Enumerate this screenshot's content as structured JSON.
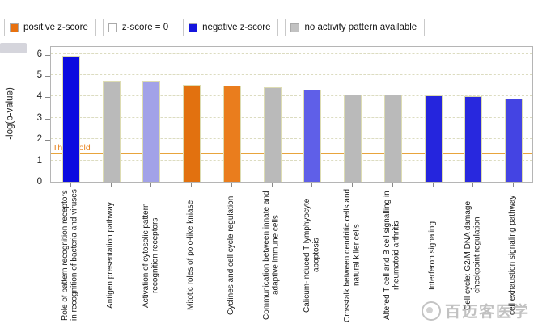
{
  "legend": {
    "items": [
      {
        "label": "positive z-score",
        "color": "#e8710f"
      },
      {
        "label": "z-score = 0",
        "color": "#ffffff"
      },
      {
        "label": "negative z-score",
        "color": "#1515dd"
      },
      {
        "label": "no activity pattern available",
        "color": "#c2c2c2"
      }
    ]
  },
  "chart_data": {
    "type": "bar",
    "title": "",
    "xlabel": "",
    "ylabel": "-log(p-value)",
    "ylim": [
      0,
      6.4
    ],
    "yticks": [
      0,
      1,
      2,
      3,
      4,
      5,
      6
    ],
    "grid": "horizontal-dashed",
    "legend_position": "top",
    "threshold": {
      "value": 1.3,
      "label": "Threshold",
      "line_color": "#e8a43c",
      "label_color": "#e8821e"
    },
    "categories": [
      "Role of pattern recognition receptors in recognition of bacteria and viruses",
      "Antigen presentation pathway",
      "Activation of cytosolic pattern recognition receptors",
      "Mitotic roles of polo-like kniase",
      "Cyclines and cell cycle regulation",
      "Communication between innate and adaptive immune cells",
      "Calicum-induced T lymphyocyte apoptosis",
      "Crosstalk between dendritic cells and natural killer cells",
      "Altered T cell and B cell signalling in rheumatoid arthritis",
      "Interferon signaling",
      "Cell cycle: G2/M DNA damage checkpoint regulation",
      "cell exhaustion signaling pathway"
    ],
    "values": [
      5.9,
      4.75,
      4.75,
      4.55,
      4.5,
      4.45,
      4.3,
      4.1,
      4.1,
      4.05,
      4.0,
      3.9
    ],
    "bar_colors": [
      "#0b0be0",
      "#bababa",
      "#a2a2e8",
      "#e2710f",
      "#ea7d1d",
      "#bababa",
      "#5f5fe8",
      "#bababa",
      "#bababa",
      "#2525dd",
      "#2828de",
      "#4444e3"
    ],
    "bar_categories_zscore": [
      "negative z-score",
      "no activity pattern available",
      "negative z-score",
      "positive z-score",
      "positive z-score",
      "no activity pattern available",
      "negative z-score",
      "no activity pattern available",
      "no activity pattern available",
      "negative z-score",
      "negative z-score",
      "negative z-score"
    ]
  },
  "watermark": {
    "text": "百迈客医学"
  }
}
